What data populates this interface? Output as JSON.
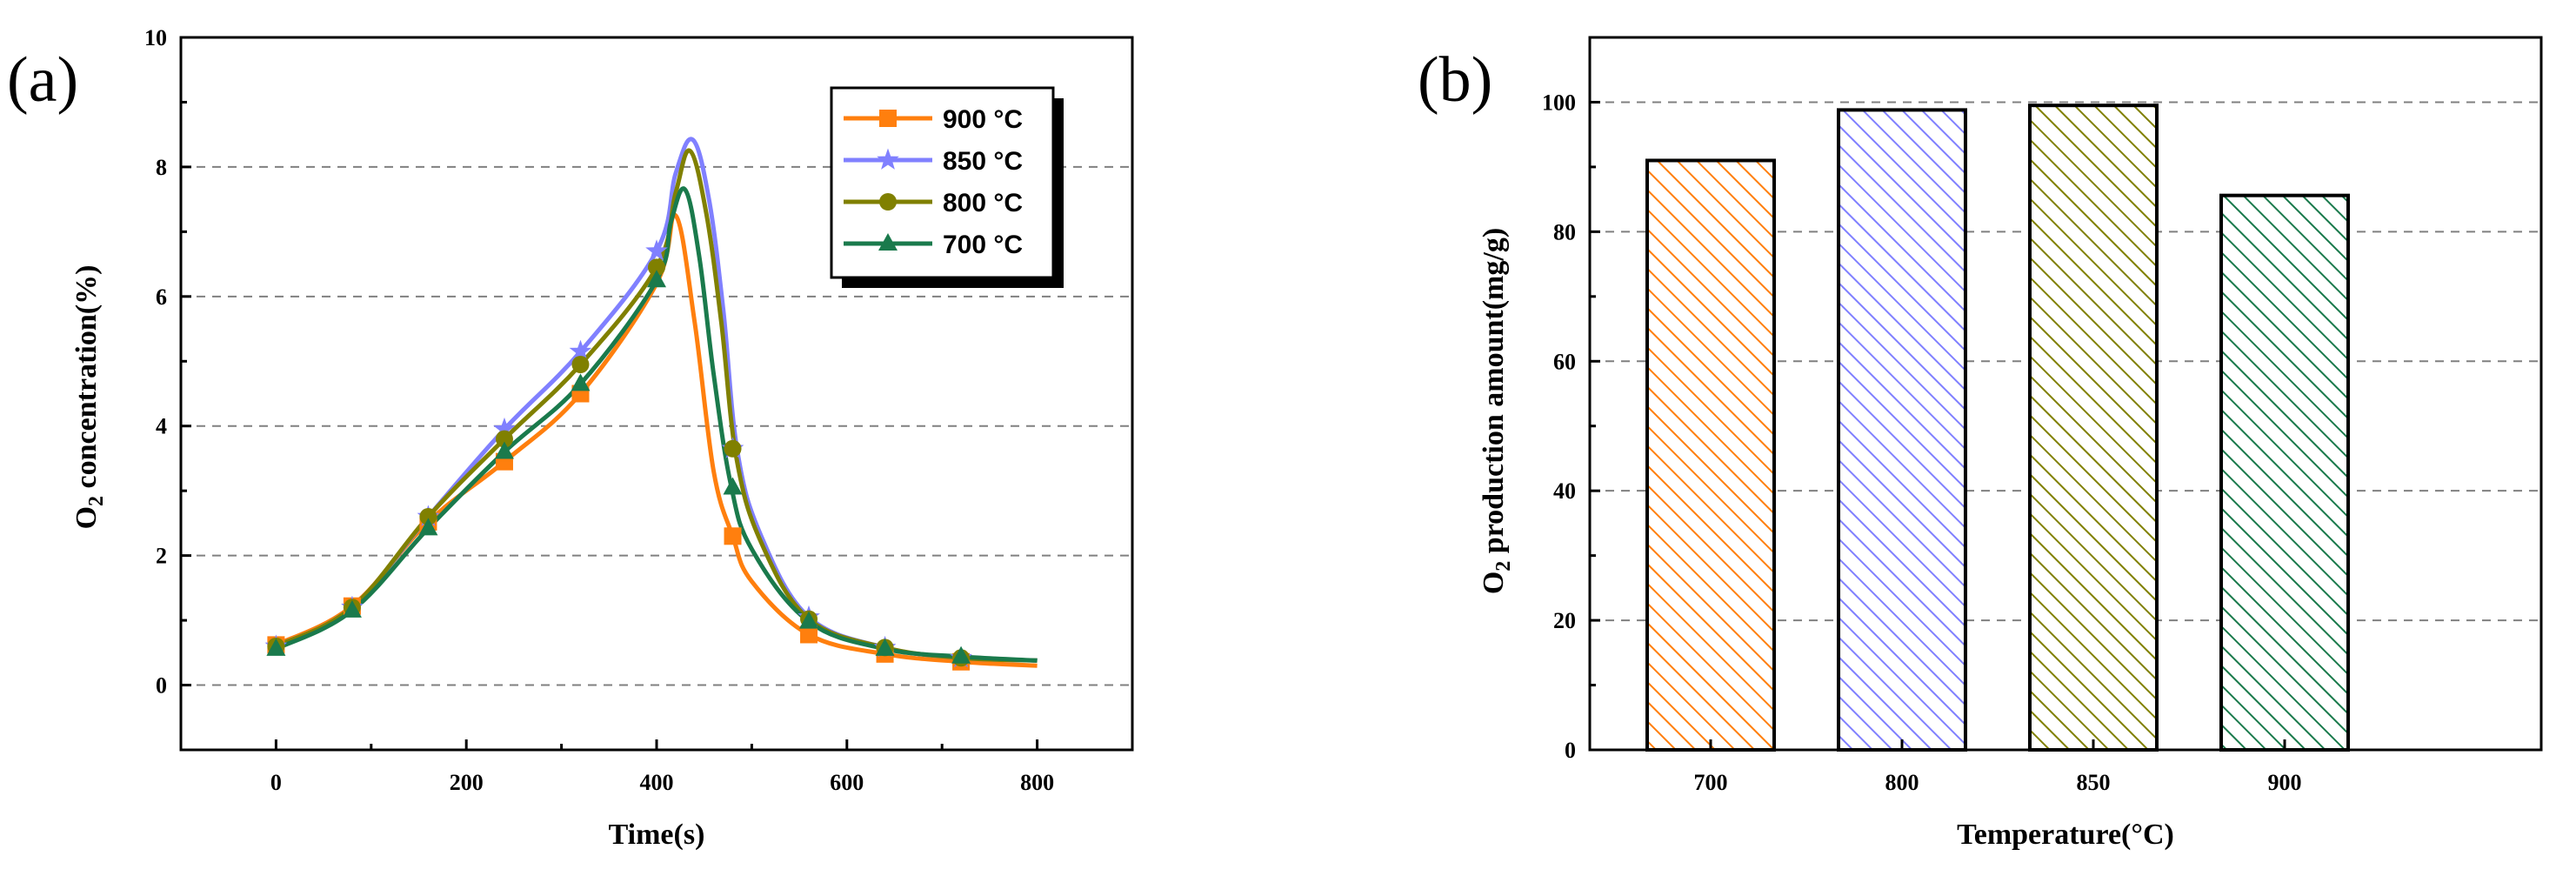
{
  "chart_data": [
    {
      "panel": "(a)",
      "type": "line",
      "xlabel": "Time(s)",
      "ylabel_main": "O",
      "ylabel_sub": "2",
      "ylabel_rest": " concentration(%)",
      "xlim": [
        -100,
        900
      ],
      "ylim": [
        -1,
        10
      ],
      "xticks": [
        0,
        200,
        400,
        600,
        800
      ],
      "yticks": [
        0,
        2,
        4,
        6,
        8,
        10
      ],
      "grid_y": [
        0,
        2,
        4,
        6,
        8
      ],
      "legend_position": "top-right",
      "series": [
        {
          "name": "900 °C",
          "color": "#ff7f0e",
          "marker": "square",
          "x": [
            0,
            80,
            160,
            240,
            320,
            400,
            420,
            440,
            460,
            480,
            500,
            560,
            640,
            720,
            800
          ],
          "y": [
            0.62,
            1.22,
            2.52,
            3.45,
            4.5,
            6.2,
            7.25,
            5.6,
            3.3,
            2.3,
            1.6,
            0.78,
            0.48,
            0.36,
            0.3
          ],
          "marker_x": [
            0,
            80,
            160,
            240,
            320,
            480,
            560,
            640,
            720
          ],
          "marker_y": [
            0.62,
            1.22,
            2.52,
            3.45,
            4.5,
            2.3,
            0.78,
            0.48,
            0.36
          ]
        },
        {
          "name": "850 °C",
          "color": "#8080ff",
          "marker": "star",
          "x": [
            0,
            80,
            160,
            240,
            320,
            400,
            420,
            438,
            455,
            470,
            485,
            510,
            560,
            640,
            720,
            800
          ],
          "y": [
            0.6,
            1.2,
            2.6,
            3.95,
            5.15,
            6.7,
            7.9,
            8.42,
            7.5,
            5.8,
            3.6,
            2.3,
            1.05,
            0.58,
            0.42,
            0.38
          ],
          "marker_x": [
            0,
            80,
            160,
            240,
            320,
            400,
            480,
            560,
            640,
            720
          ],
          "marker_y": [
            0.6,
            1.2,
            2.6,
            3.95,
            5.15,
            6.7,
            3.65,
            1.05,
            0.58,
            0.42
          ]
        },
        {
          "name": "800 °C",
          "color": "#808000",
          "marker": "circle",
          "x": [
            0,
            80,
            160,
            240,
            320,
            400,
            420,
            435,
            452,
            468,
            484,
            510,
            560,
            640,
            720,
            800
          ],
          "y": [
            0.6,
            1.2,
            2.6,
            3.8,
            4.95,
            6.45,
            7.6,
            8.25,
            7.3,
            5.6,
            3.5,
            2.2,
            1.02,
            0.58,
            0.42,
            0.38
          ],
          "marker_x": [
            0,
            80,
            160,
            240,
            320,
            400,
            480,
            560,
            640,
            720
          ],
          "marker_y": [
            0.6,
            1.2,
            2.6,
            3.8,
            4.95,
            6.45,
            3.65,
            1.02,
            0.58,
            0.42
          ]
        },
        {
          "name": "700 °C",
          "color": "#1a7a4c",
          "marker": "triangle",
          "x": [
            0,
            80,
            160,
            240,
            320,
            400,
            415,
            430,
            445,
            460,
            478,
            500,
            560,
            640,
            720,
            800
          ],
          "y": [
            0.56,
            1.15,
            2.42,
            3.6,
            4.65,
            6.25,
            7.15,
            7.65,
            6.6,
            4.8,
            3.1,
            2.1,
            0.98,
            0.56,
            0.44,
            0.38
          ],
          "marker_x": [
            0,
            80,
            160,
            240,
            320,
            400,
            480,
            560,
            640,
            720
          ],
          "marker_y": [
            0.56,
            1.15,
            2.42,
            3.6,
            4.65,
            6.25,
            3.05,
            0.98,
            0.56,
            0.44
          ]
        }
      ]
    },
    {
      "panel": "(b)",
      "type": "bar",
      "xlabel": "Temperature(°C)",
      "ylabel_main": "O",
      "ylabel_sub": "2",
      "ylabel_rest": " production amount(mg/g)",
      "ylim": [
        0,
        110
      ],
      "yticks": [
        0,
        20,
        40,
        60,
        80,
        100
      ],
      "grid_y": [
        20,
        40,
        60,
        80,
        100
      ],
      "categories": [
        "700",
        "800",
        "850",
        "900"
      ],
      "values": [
        91,
        98.8,
        99.5,
        85.6
      ],
      "colors": [
        "#ff7f0e",
        "#8080ff",
        "#808000",
        "#1a7a4c"
      ]
    }
  ]
}
